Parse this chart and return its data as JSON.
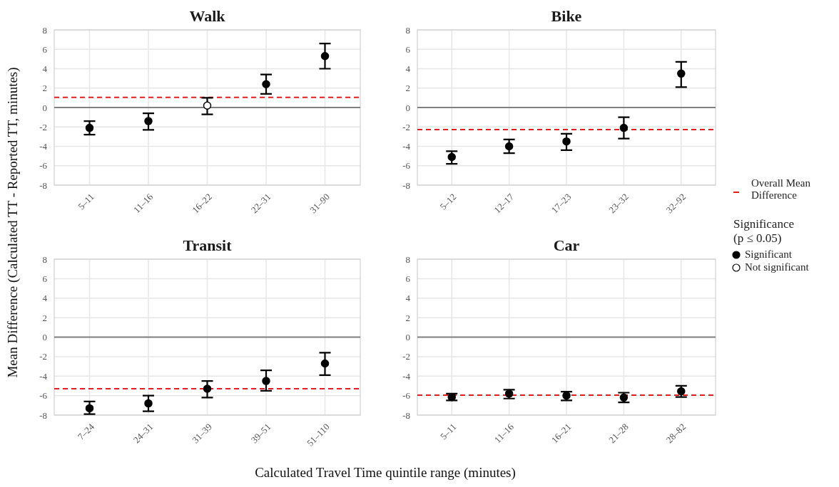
{
  "chart_data": [
    {
      "type": "scatter",
      "title": "Walk",
      "ylabel": "Mean Difference (Calculated TT - Reported TT, minutes)",
      "categories": [
        "5–11",
        "11–16",
        "16–22",
        "22–31",
        "31–90"
      ],
      "ylim": [
        -8,
        8
      ],
      "yticks": [
        -8,
        -6,
        -4,
        -2,
        0,
        2,
        4,
        6,
        8
      ],
      "grid": true,
      "marker": "circle",
      "legend": "right",
      "legend_title": "Significance (p ≤ 0.05)",
      "series": [
        {
          "name": "Significant",
          "color": "#000000",
          "values": [
            -2.1,
            -1.4,
            null,
            2.4,
            5.3
          ],
          "errors": [
            [
              -2.8,
              -1.4
            ],
            [
              -2.3,
              -0.6
            ],
            null,
            [
              1.4,
              3.4
            ],
            [
              4.0,
              6.6
            ]
          ]
        },
        {
          "name": "Not significant",
          "color": "#ffffff",
          "values": [
            null,
            null,
            0.2,
            null,
            null
          ],
          "errors": [
            null,
            null,
            [
              -0.7,
              1.0
            ],
            null,
            null
          ]
        }
      ],
      "ref_lines": [
        {
          "axis": "y",
          "value": 0,
          "color": "#808080",
          "line_style": "solid"
        },
        {
          "axis": "y",
          "value": 1.05,
          "label": "Overall Mean Difference",
          "color": "#e02020",
          "line_style": "dashed"
        }
      ]
    },
    {
      "type": "scatter",
      "title": "Bike",
      "categories": [
        "5–12",
        "12–17",
        "17–23",
        "23–32",
        "32–92"
      ],
      "ylim": [
        -8,
        8
      ],
      "yticks": [
        -8,
        -6,
        -4,
        -2,
        0,
        2,
        4,
        6,
        8
      ],
      "grid": true,
      "marker": "circle",
      "series": [
        {
          "color": "#000000",
          "values": [
            -5.1,
            -4.0,
            -3.5,
            -2.1,
            3.5
          ],
          "errors": [
            [
              -5.8,
              -4.5
            ],
            [
              -4.7,
              -3.3
            ],
            [
              -4.4,
              -2.7
            ],
            [
              -3.2,
              -1.0
            ],
            [
              2.1,
              4.7
            ]
          ]
        }
      ],
      "ref_lines": [
        {
          "axis": "y",
          "value": 0,
          "color": "#808080",
          "line_style": "solid"
        },
        {
          "axis": "y",
          "value": -2.27,
          "color": "#e02020",
          "line_style": "dashed"
        }
      ]
    },
    {
      "type": "scatter",
      "title": "Transit",
      "xlabel": "Calculated Travel Time quintile range (minutes)",
      "categories": [
        "7–24",
        "24–31",
        "31–39",
        "39–51",
        "51–110"
      ],
      "ylim": [
        -8,
        8
      ],
      "yticks": [
        -8,
        -6,
        -4,
        -2,
        0,
        2,
        4,
        6,
        8
      ],
      "grid": true,
      "marker": "circle",
      "series": [
        {
          "color": "#000000",
          "values": [
            -7.3,
            -6.8,
            -5.3,
            -4.5,
            -2.7
          ],
          "errors": [
            [
              -7.9,
              -6.6
            ],
            [
              -7.6,
              -6.0
            ],
            [
              -6.2,
              -4.5
            ],
            [
              -5.5,
              -3.4
            ],
            [
              -3.9,
              -1.6
            ]
          ]
        }
      ],
      "ref_lines": [
        {
          "axis": "y",
          "value": 0,
          "color": "#808080",
          "line_style": "solid"
        },
        {
          "axis": "y",
          "value": -5.29,
          "color": "#e02020",
          "line_style": "dashed"
        }
      ]
    },
    {
      "type": "scatter",
      "title": "Car",
      "categories": [
        "5–11",
        "11–16",
        "16–21",
        "21–28",
        "28–82"
      ],
      "ylim": [
        -8,
        8
      ],
      "yticks": [
        -8,
        -6,
        -4,
        -2,
        0,
        2,
        4,
        6,
        8
      ],
      "grid": true,
      "marker": "circle",
      "series": [
        {
          "color": "#000000",
          "values": [
            -6.15,
            -5.8,
            -6.0,
            -6.2,
            -5.55
          ],
          "errors": [
            [
              -6.5,
              -5.8
            ],
            [
              -6.3,
              -5.4
            ],
            [
              -6.5,
              -5.6
            ],
            [
              -6.7,
              -5.7
            ],
            [
              -6.15,
              -5.0
            ]
          ]
        }
      ],
      "ref_lines": [
        {
          "axis": "y",
          "value": 0,
          "color": "#808080",
          "line_style": "solid"
        },
        {
          "axis": "y",
          "value": -5.95,
          "color": "#e02020",
          "line_style": "dashed"
        }
      ]
    }
  ]
}
